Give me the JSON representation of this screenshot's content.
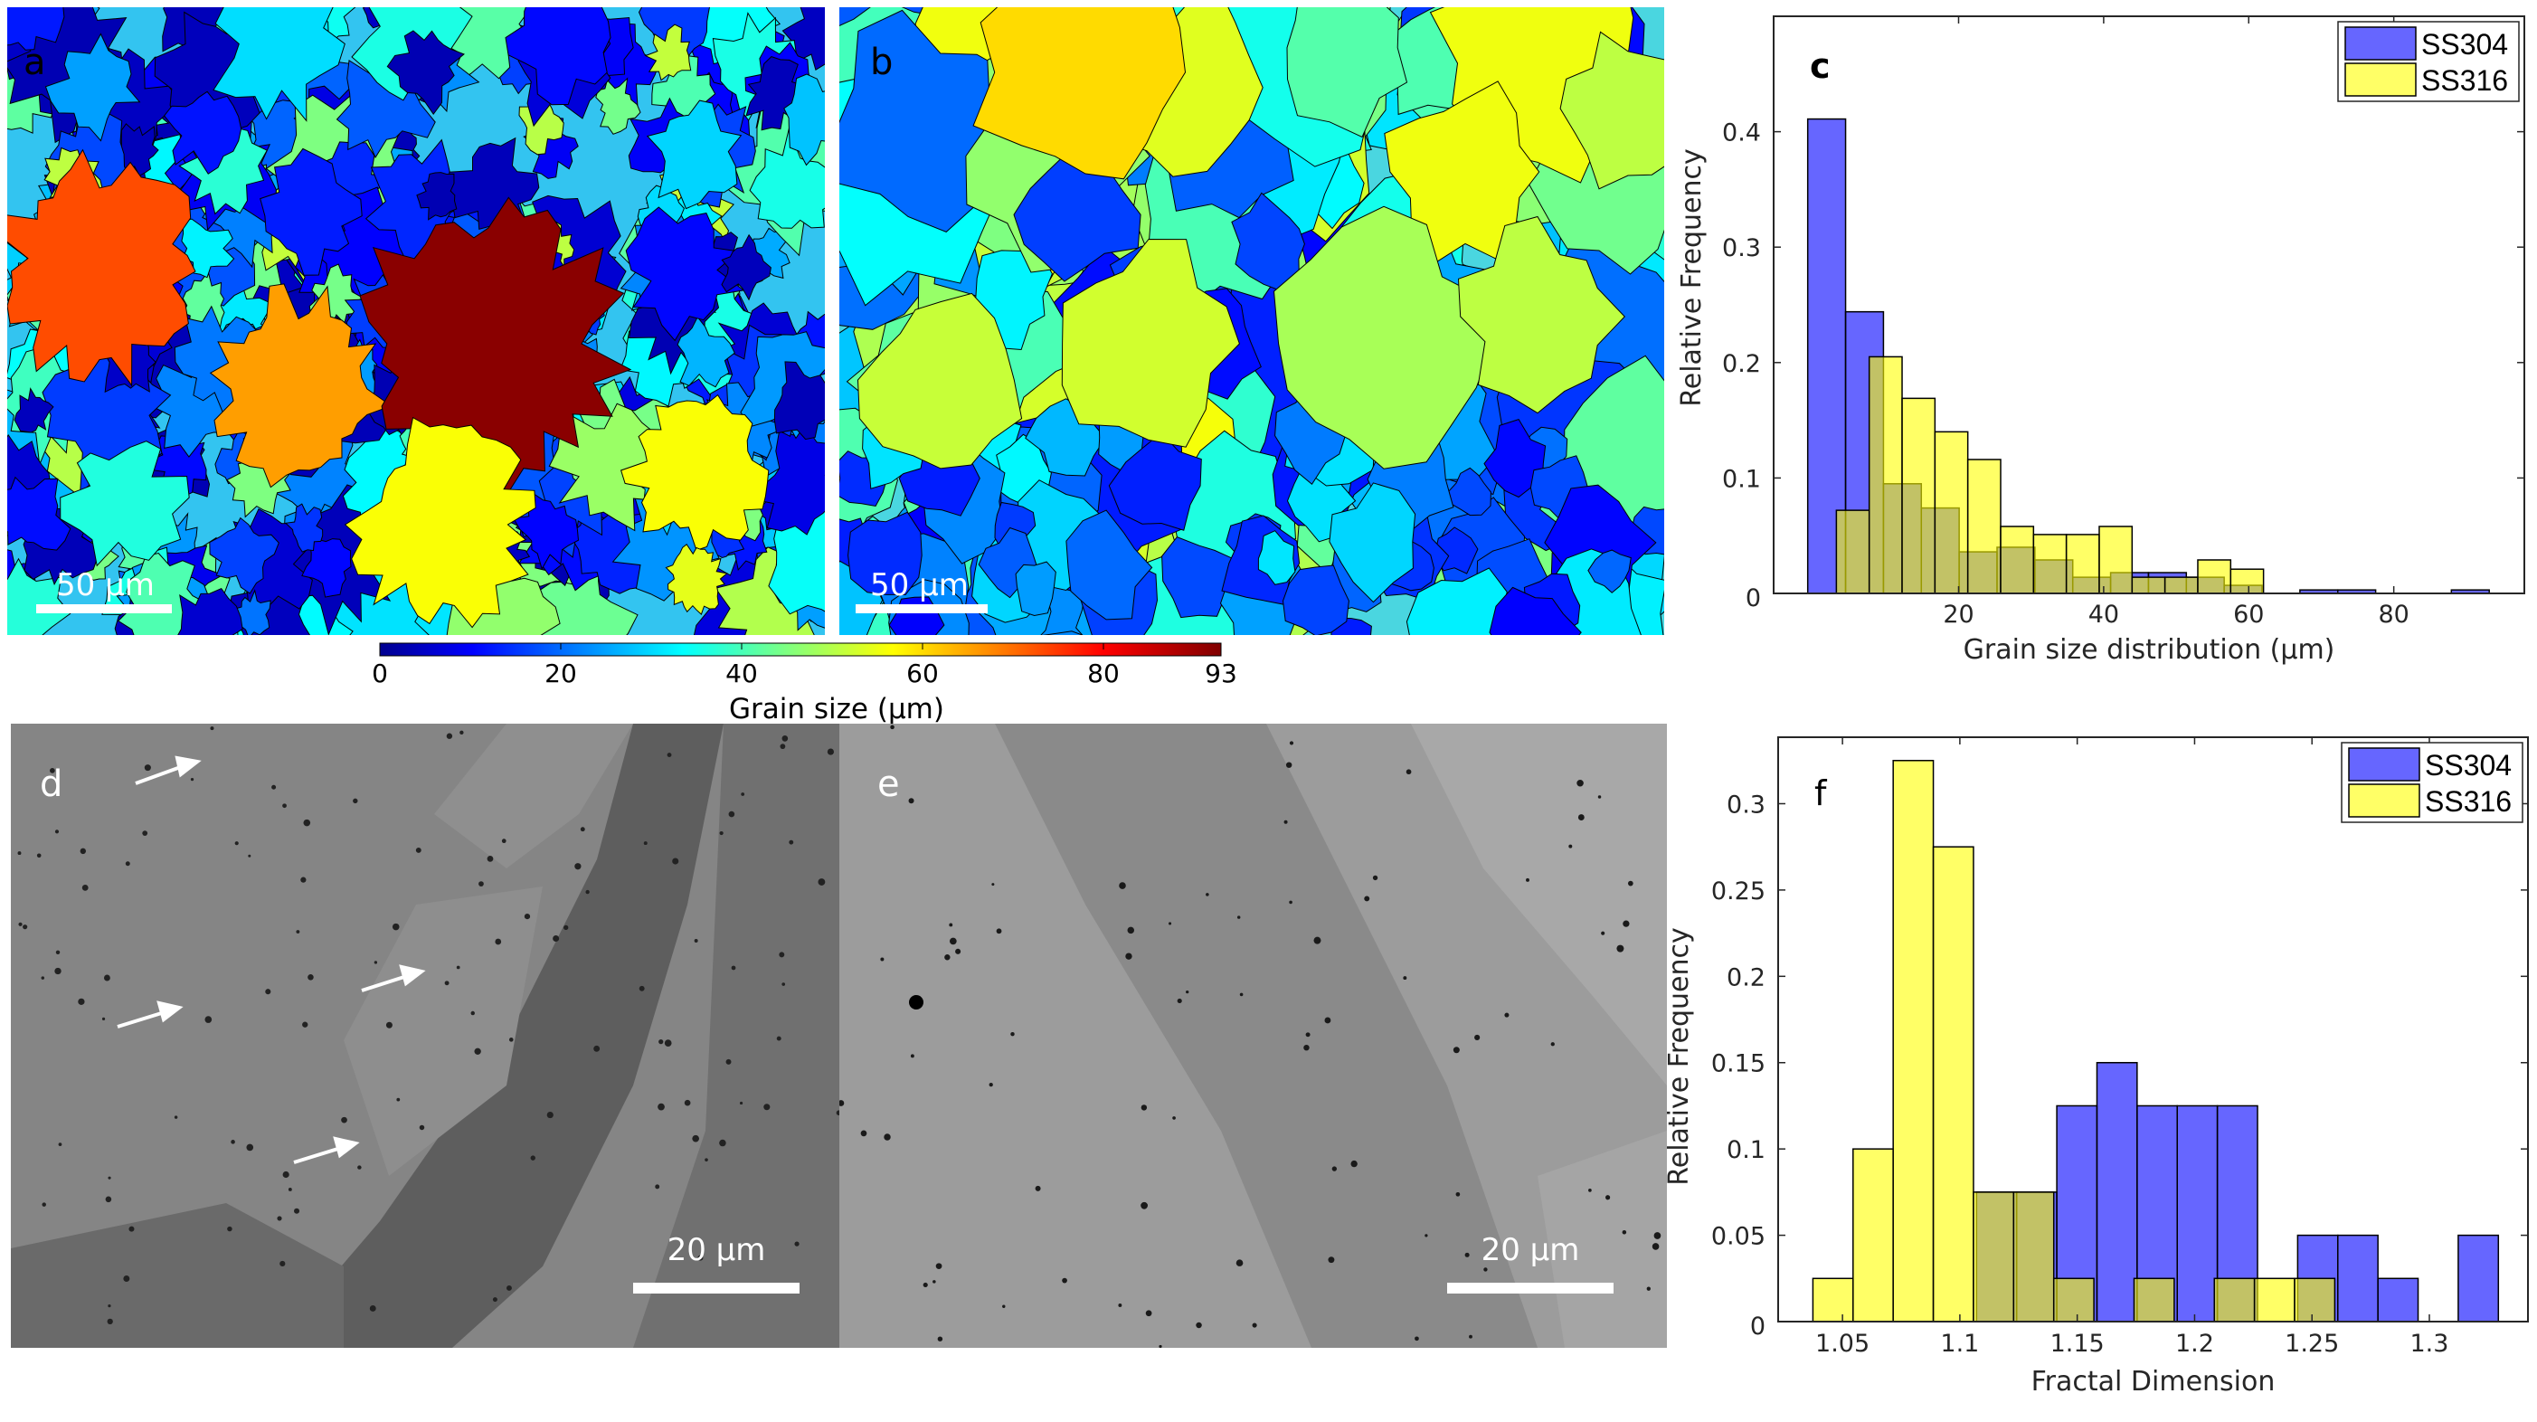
{
  "panels": {
    "a": {
      "label": "a",
      "scale_bar": "50 µm"
    },
    "b": {
      "label": "b",
      "scale_bar": "50 µm"
    },
    "d": {
      "label": "d",
      "scale_bar": "20 µm"
    },
    "e": {
      "label": "e",
      "scale_bar": "20 µm"
    }
  },
  "colorbar": {
    "label": "Grain size (µm)",
    "min": 0,
    "max": 93,
    "ticks": [
      "0",
      "20",
      "40",
      "60",
      "80",
      "93"
    ]
  },
  "colors": {
    "ss304": "#0000ff",
    "ss316": "#ffff00",
    "bar_alpha": 0.6
  },
  "chart_data": [
    {
      "id": "c",
      "panel_label": "c",
      "type": "bar",
      "histogram": true,
      "xlabel": "Grain size distribution (µm)",
      "ylabel": "Relative Frequency",
      "xlim": [
        -5.5,
        98
      ],
      "ylim": [
        0,
        0.5
      ],
      "xticks": [
        20,
        40,
        60,
        80
      ],
      "xtick_labels": [
        "20",
        "40",
        "60",
        "80"
      ],
      "yticks": [
        0,
        0.1,
        0.2,
        0.3,
        0.4
      ],
      "ytick_labels": [
        "0",
        "0.1",
        "0.2",
        "0.3",
        "0.4"
      ],
      "legend": {
        "position": "top-right",
        "entries": [
          "SS304",
          "SS316"
        ]
      },
      "series": [
        {
          "name": "SS304",
          "bin_start": -0.8,
          "bin_width": 5.22,
          "values": [
            0.411,
            0.244,
            0.095,
            0.074,
            0.036,
            0.04,
            0.029,
            0.014,
            0.018,
            0.018,
            0.014,
            0.007,
            0,
            0.003,
            0.003,
            0,
            0,
            0.003
          ]
        },
        {
          "name": "SS316",
          "bin_start": 3.15,
          "bin_width": 4.53,
          "values": [
            0.072,
            0.205,
            0.169,
            0.14,
            0.116,
            0.058,
            0.051,
            0.051,
            0.058,
            0.014,
            0.014,
            0.029,
            0.021
          ]
        }
      ]
    },
    {
      "id": "f",
      "panel_label": "f",
      "type": "bar",
      "histogram": true,
      "xlabel": "Fractal Dimension",
      "ylabel": "Relative Frequency",
      "xlim": [
        1.0226,
        1.342
      ],
      "ylim": [
        0,
        0.3385
      ],
      "xticks": [
        1.05,
        1.1,
        1.15,
        1.2,
        1.25,
        1.3
      ],
      "xtick_labels": [
        "1.05",
        "1.1",
        "1.15",
        "1.2",
        "1.25",
        "1.3"
      ],
      "yticks": [
        0,
        0.05,
        0.1,
        0.15,
        0.2,
        0.25,
        0.3
      ],
      "ytick_labels": [
        "0",
        "0.05",
        "0.1",
        "0.15",
        "0.2",
        "0.25",
        "0.3"
      ],
      "legend": {
        "position": "top-right",
        "entries": [
          "SS304",
          "SS316"
        ]
      },
      "series": [
        {
          "name": "SS304",
          "bin_start": 1.1071,
          "bin_width": 0.0171,
          "values": [
            0.075,
            0.075,
            0.125,
            0.15,
            0.125,
            0.125,
            0.125,
            0,
            0.05,
            0.05,
            0.025,
            0,
            0.05
          ]
        },
        {
          "name": "SS316",
          "bin_start": 1.0374,
          "bin_width": 0.0171,
          "values": [
            0.025,
            0.1,
            0.325,
            0.275,
            0.075,
            0.075,
            0.025,
            0,
            0.025,
            0,
            0.025,
            0.025,
            0.025
          ]
        }
      ]
    }
  ]
}
